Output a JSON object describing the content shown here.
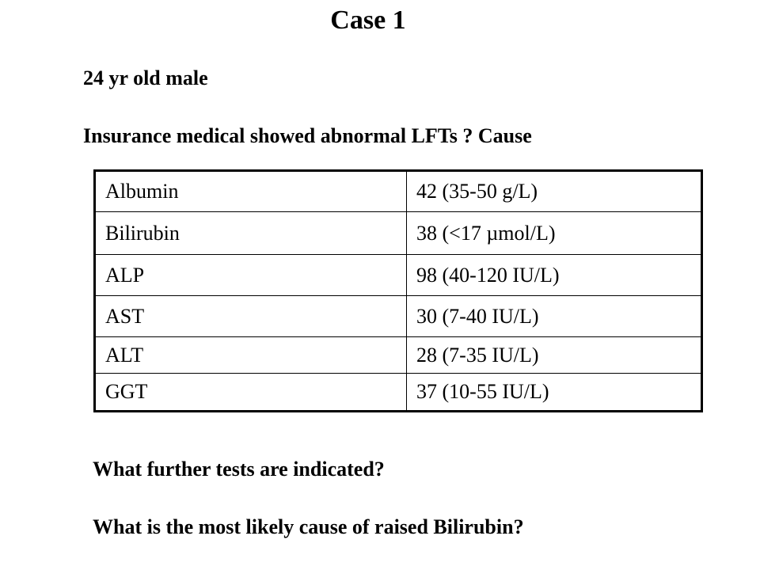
{
  "title": "Case 1",
  "patient": "24 yr old male",
  "finding": "Insurance medical showed abnormal LFTs ? Cause",
  "table": {
    "rows": [
      {
        "test": "Albumin",
        "result": "42 (35-50 g/L)"
      },
      {
        "test": "Bilirubin",
        "result": "38 (<17 µmol/L)"
      },
      {
        "test": "ALP",
        "result": "98 (40-120 IU/L)"
      },
      {
        "test": "AST",
        "result": "30 (7-40 IU/L)"
      },
      {
        "test": "ALT",
        "result": "28 (7-35 IU/L)"
      },
      {
        "test": "GGT",
        "result": "37 (10-55 IU/L)"
      }
    ]
  },
  "questions": [
    "What further tests are indicated?",
    "What is the most likely cause of raised Bilirubin?"
  ]
}
